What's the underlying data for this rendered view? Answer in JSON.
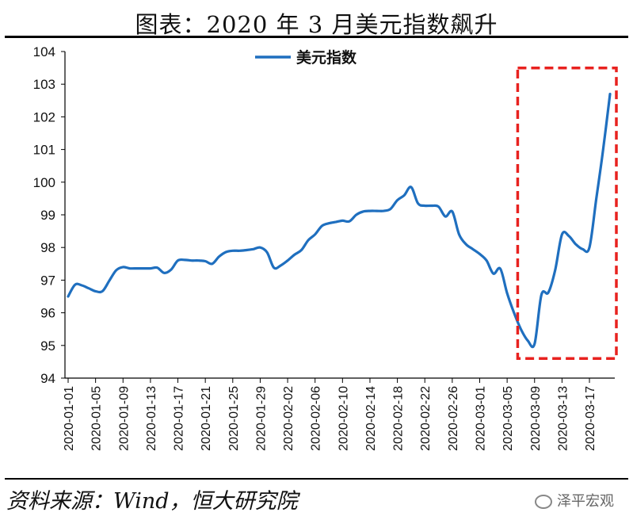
{
  "title": "图表：2020 年 3 月美元指数飙升",
  "source": "资料来源：Wind，恒大研究院",
  "watermark": "泽平宏观",
  "colors": {
    "line": "#1f6fbf",
    "highlight": "#e8221f",
    "axis": "#000000"
  },
  "chart_data": {
    "type": "line",
    "title": "",
    "xlabel": "",
    "ylabel": "",
    "ylim": [
      94,
      104
    ],
    "yticks": [
      94,
      95,
      96,
      97,
      98,
      99,
      100,
      101,
      102,
      103,
      104
    ],
    "xticks": [
      "2020-01-01",
      "2020-01-05",
      "2020-01-09",
      "2020-01-13",
      "2020-01-17",
      "2020-01-21",
      "2020-01-25",
      "2020-01-29",
      "2020-02-02",
      "2020-02-06",
      "2020-02-10",
      "2020-02-14",
      "2020-02-18",
      "2020-02-22",
      "2020-02-26",
      "2020-03-01",
      "2020-03-05",
      "2020-03-09",
      "2020-03-13",
      "2020-03-17"
    ],
    "xlim": [
      "2020-01-01",
      "2020-03-20"
    ],
    "legend": "top-center",
    "grid": false,
    "highlight_box": {
      "x_from": "2020-03-07",
      "x_to": "2020-03-20",
      "y_from": 94.6,
      "y_to": 103.4
    },
    "series": [
      {
        "name": "美元指数",
        "points": [
          [
            "2020-01-01",
            96.5
          ],
          [
            "2020-01-02",
            96.86
          ],
          [
            "2020-01-03",
            96.84
          ],
          [
            "2020-01-04",
            96.75
          ],
          [
            "2020-01-05",
            96.66
          ],
          [
            "2020-01-06",
            96.66
          ],
          [
            "2020-01-07",
            96.98
          ],
          [
            "2020-01-08",
            97.3
          ],
          [
            "2020-01-09",
            97.4
          ],
          [
            "2020-01-10",
            97.36
          ],
          [
            "2020-01-11",
            97.36
          ],
          [
            "2020-01-12",
            97.36
          ],
          [
            "2020-01-13",
            97.36
          ],
          [
            "2020-01-14",
            97.38
          ],
          [
            "2020-01-15",
            97.22
          ],
          [
            "2020-01-16",
            97.32
          ],
          [
            "2020-01-17",
            97.6
          ],
          [
            "2020-01-18",
            97.62
          ],
          [
            "2020-01-19",
            97.6
          ],
          [
            "2020-01-20",
            97.6
          ],
          [
            "2020-01-21",
            97.58
          ],
          [
            "2020-01-22",
            97.5
          ],
          [
            "2020-01-23",
            97.72
          ],
          [
            "2020-01-24",
            97.86
          ],
          [
            "2020-01-25",
            97.9
          ],
          [
            "2020-01-26",
            97.9
          ],
          [
            "2020-01-27",
            97.92
          ],
          [
            "2020-01-28",
            97.95
          ],
          [
            "2020-01-29",
            98.0
          ],
          [
            "2020-01-30",
            97.85
          ],
          [
            "2020-01-31",
            97.38
          ],
          [
            "2020-02-01",
            97.45
          ],
          [
            "2020-02-02",
            97.6
          ],
          [
            "2020-02-03",
            97.78
          ],
          [
            "2020-02-04",
            97.92
          ],
          [
            "2020-02-05",
            98.22
          ],
          [
            "2020-02-06",
            98.4
          ],
          [
            "2020-02-07",
            98.66
          ],
          [
            "2020-02-08",
            98.74
          ],
          [
            "2020-02-09",
            98.78
          ],
          [
            "2020-02-10",
            98.82
          ],
          [
            "2020-02-11",
            98.8
          ],
          [
            "2020-02-12",
            99.0
          ],
          [
            "2020-02-13",
            99.1
          ],
          [
            "2020-02-14",
            99.12
          ],
          [
            "2020-02-15",
            99.12
          ],
          [
            "2020-02-16",
            99.12
          ],
          [
            "2020-02-17",
            99.18
          ],
          [
            "2020-02-18",
            99.45
          ],
          [
            "2020-02-19",
            99.6
          ],
          [
            "2020-02-20",
            99.85
          ],
          [
            "2020-02-21",
            99.35
          ],
          [
            "2020-02-22",
            99.28
          ],
          [
            "2020-02-23",
            99.28
          ],
          [
            "2020-02-24",
            99.25
          ],
          [
            "2020-02-25",
            98.95
          ],
          [
            "2020-02-26",
            99.1
          ],
          [
            "2020-02-27",
            98.4
          ],
          [
            "2020-02-28",
            98.1
          ],
          [
            "2020-02-29",
            97.95
          ],
          [
            "2020-03-01",
            97.8
          ],
          [
            "2020-03-02",
            97.6
          ],
          [
            "2020-03-03",
            97.2
          ],
          [
            "2020-03-04",
            97.35
          ],
          [
            "2020-03-05",
            96.6
          ],
          [
            "2020-03-06",
            96.0
          ],
          [
            "2020-03-07",
            95.5
          ],
          [
            "2020-03-08",
            95.15
          ],
          [
            "2020-03-09",
            95.05
          ],
          [
            "2020-03-10",
            96.55
          ],
          [
            "2020-03-11",
            96.62
          ],
          [
            "2020-03-12",
            97.3
          ],
          [
            "2020-03-13",
            98.4
          ],
          [
            "2020-03-14",
            98.35
          ],
          [
            "2020-03-15",
            98.1
          ],
          [
            "2020-03-16",
            97.95
          ],
          [
            "2020-03-17",
            98.0
          ],
          [
            "2020-03-18",
            99.5
          ],
          [
            "2020-03-19",
            101.0
          ],
          [
            "2020-03-20",
            102.7
          ]
        ]
      }
    ]
  }
}
